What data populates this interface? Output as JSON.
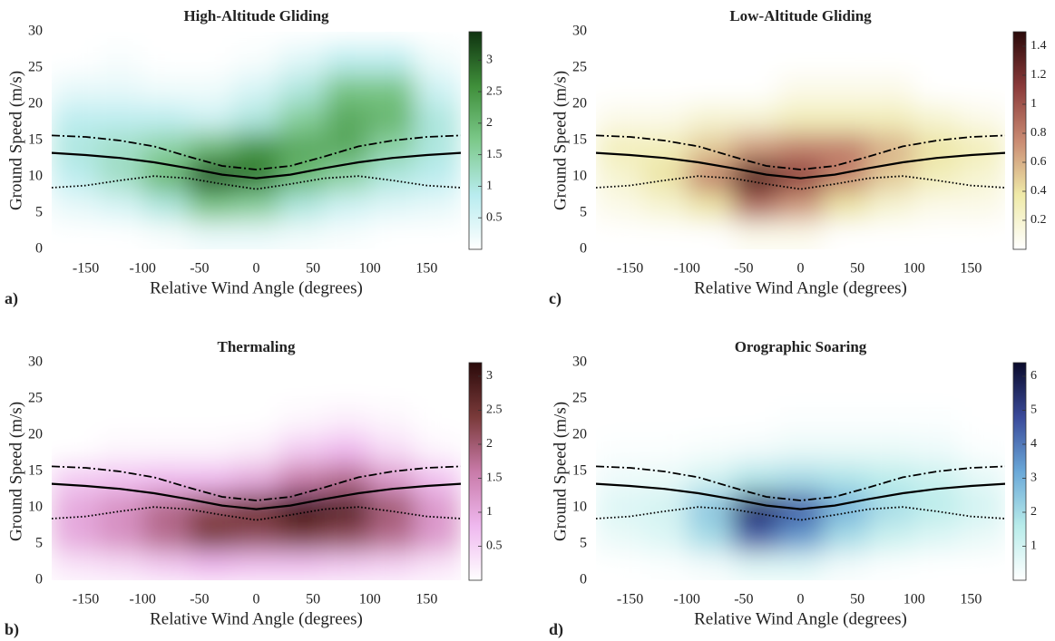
{
  "chart_data": [
    {
      "type": "heatmap",
      "title": "High-Altitude Gliding",
      "xlabel": "Relative Wind Angle (degrees)",
      "ylabel": "Ground Speed (m/s)",
      "panel_label": "a)",
      "xlim": [
        -180,
        180
      ],
      "xticks": [
        -150,
        -100,
        -50,
        0,
        50,
        100,
        150
      ],
      "ylim": [
        0,
        30
      ],
      "yticks": [
        0,
        5,
        10,
        15,
        20,
        25,
        30
      ],
      "colormap": [
        "#ffffff",
        "#b8ecef",
        "#7cc98a",
        "#3f8f3a",
        "#0f3310"
      ],
      "clim": [
        0,
        3.45
      ],
      "cticks": [
        0.5,
        1,
        1.5,
        2,
        2.5,
        3
      ],
      "x": [
        -160,
        -120,
        -80,
        -40,
        0,
        40,
        80,
        120,
        160
      ],
      "y": [
        2,
        6,
        10,
        14,
        18,
        22,
        26
      ],
      "z": [
        [
          0,
          0,
          0.1,
          0.3,
          0.3,
          0.2,
          0.1,
          0,
          0
        ],
        [
          0.3,
          0.5,
          1.0,
          1.8,
          1.6,
          1.0,
          0.6,
          0.4,
          0.3
        ],
        [
          0.8,
          1.2,
          2.0,
          3.2,
          2.8,
          2.0,
          1.5,
          1.0,
          0.8
        ],
        [
          1.0,
          1.2,
          1.5,
          2.0,
          2.5,
          2.2,
          2.2,
          1.5,
          1.0
        ],
        [
          0.8,
          0.8,
          0.8,
          0.6,
          1.0,
          1.6,
          2.2,
          2.0,
          1.0
        ],
        [
          0.3,
          0.3,
          0.2,
          0.2,
          0.5,
          1.0,
          1.8,
          1.8,
          0.6
        ],
        [
          0,
          0.1,
          0,
          0,
          0.1,
          0.4,
          0.8,
          0.8,
          0.2
        ]
      ],
      "series": [
        {
          "style": "dashed",
          "color": "#000000",
          "x": [
            -180,
            -150,
            -120,
            -90,
            -60,
            -30,
            0,
            30,
            60,
            90,
            120,
            150,
            180
          ],
          "values": [
            15.7,
            15.5,
            15.0,
            14.2,
            12.8,
            11.5,
            11.0,
            11.5,
            12.8,
            14.2,
            15.0,
            15.5,
            15.7
          ]
        },
        {
          "style": "solid",
          "color": "#000000",
          "x": [
            -180,
            -150,
            -120,
            -90,
            -60,
            -30,
            0,
            30,
            60,
            90,
            120,
            150,
            180
          ],
          "values": [
            13.3,
            13.0,
            12.6,
            12.0,
            11.2,
            10.3,
            9.8,
            10.3,
            11.2,
            12.0,
            12.6,
            13.0,
            13.3
          ]
        },
        {
          "style": "dotted",
          "color": "#000000",
          "x": [
            -180,
            -150,
            -120,
            -90,
            -60,
            -30,
            0,
            30,
            60,
            90,
            120,
            150,
            180
          ],
          "values": [
            8.5,
            8.8,
            9.5,
            10.1,
            9.8,
            9.0,
            8.3,
            9.0,
            9.8,
            10.1,
            9.5,
            8.8,
            8.5
          ]
        }
      ]
    },
    {
      "type": "heatmap",
      "title": "Low-Altitude Gliding",
      "xlabel": "Relative Wind Angle (degrees)",
      "ylabel": "Ground Speed (m/s)",
      "panel_label": "c)",
      "xlim": [
        -180,
        180
      ],
      "xticks": [
        -150,
        -100,
        -50,
        0,
        50,
        100,
        150
      ],
      "ylim": [
        0,
        30
      ],
      "yticks": [
        0,
        5,
        10,
        15,
        20,
        25,
        30
      ],
      "colormap": [
        "#ffffff",
        "#efeaa8",
        "#c98a72",
        "#8a3a3a",
        "#2a0a0a"
      ],
      "clim": [
        0,
        1.5
      ],
      "cticks": [
        0.2,
        0.4,
        0.6,
        0.8,
        1,
        1.2,
        1.4
      ],
      "x": [
        -160,
        -120,
        -80,
        -40,
        0,
        40,
        80,
        120,
        160
      ],
      "y": [
        2,
        6,
        10,
        14,
        18,
        22,
        26
      ],
      "z": [
        [
          0,
          0,
          0,
          0.1,
          0.1,
          0,
          0,
          0,
          0
        ],
        [
          0.1,
          0.2,
          0.4,
          0.9,
          0.7,
          0.4,
          0.2,
          0.1,
          0.1
        ],
        [
          0.2,
          0.4,
          0.8,
          1.4,
          1.1,
          0.8,
          0.5,
          0.3,
          0.2
        ],
        [
          0.3,
          0.3,
          0.5,
          0.7,
          0.8,
          0.8,
          0.6,
          0.4,
          0.3
        ],
        [
          0.1,
          0.1,
          0.2,
          0.2,
          0.3,
          0.3,
          0.3,
          0.2,
          0.1
        ],
        [
          0,
          0,
          0,
          0,
          0.1,
          0.1,
          0.1,
          0,
          0
        ],
        [
          0,
          0,
          0,
          0,
          0,
          0,
          0,
          0,
          0
        ]
      ],
      "series": [
        {
          "style": "dashed",
          "color": "#000000",
          "x": [
            -180,
            -150,
            -120,
            -90,
            -60,
            -30,
            0,
            30,
            60,
            90,
            120,
            150,
            180
          ],
          "values": [
            15.7,
            15.5,
            15.0,
            14.2,
            12.8,
            11.5,
            11.0,
            11.5,
            12.8,
            14.2,
            15.0,
            15.5,
            15.7
          ]
        },
        {
          "style": "solid",
          "color": "#000000",
          "x": [
            -180,
            -150,
            -120,
            -90,
            -60,
            -30,
            0,
            30,
            60,
            90,
            120,
            150,
            180
          ],
          "values": [
            13.3,
            13.0,
            12.6,
            12.0,
            11.2,
            10.3,
            9.8,
            10.3,
            11.2,
            12.0,
            12.6,
            13.0,
            13.3
          ]
        },
        {
          "style": "dotted",
          "color": "#000000",
          "x": [
            -180,
            -150,
            -120,
            -90,
            -60,
            -30,
            0,
            30,
            60,
            90,
            120,
            150,
            180
          ],
          "values": [
            8.5,
            8.8,
            9.5,
            10.1,
            9.8,
            9.0,
            8.3,
            9.0,
            9.8,
            10.1,
            9.5,
            8.8,
            8.5
          ]
        }
      ]
    },
    {
      "type": "heatmap",
      "title": "Thermaling",
      "xlabel": "Relative Wind Angle (degrees)",
      "ylabel": "Ground Speed (m/s)",
      "panel_label": "b)",
      "xlim": [
        -180,
        180
      ],
      "xticks": [
        -150,
        -100,
        -50,
        0,
        50,
        100,
        150
      ],
      "ylim": [
        0,
        30
      ],
      "yticks": [
        0,
        5,
        10,
        15,
        20,
        25,
        30
      ],
      "colormap": [
        "#ffffff",
        "#efb8ef",
        "#c87aa8",
        "#7a3a3a",
        "#2a0a0a"
      ],
      "clim": [
        0,
        3.2
      ],
      "cticks": [
        0.5,
        1,
        1.5,
        2,
        2.5,
        3
      ],
      "x": [
        -160,
        -120,
        -80,
        -40,
        0,
        40,
        80,
        120,
        160
      ],
      "y": [
        2,
        6,
        10,
        14,
        18,
        22,
        26
      ],
      "z": [
        [
          0.3,
          0.4,
          0.6,
          0.8,
          0.7,
          0.7,
          0.6,
          0.5,
          0.3
        ],
        [
          1.0,
          1.3,
          1.8,
          2.4,
          2.2,
          2.4,
          2.2,
          1.8,
          1.2
        ],
        [
          1.0,
          1.3,
          1.8,
          2.2,
          2.5,
          3.1,
          2.8,
          2.0,
          1.2
        ],
        [
          0.6,
          0.7,
          0.8,
          0.8,
          1.0,
          1.6,
          1.8,
          1.2,
          0.7
        ],
        [
          0,
          0.1,
          0.1,
          0.1,
          0.2,
          0.6,
          0.8,
          0.4,
          0.1
        ],
        [
          0,
          0,
          0,
          0,
          0,
          0.1,
          0.2,
          0.1,
          0
        ],
        [
          0,
          0,
          0,
          0,
          0,
          0,
          0,
          0,
          0
        ]
      ],
      "series": [
        {
          "style": "dashed",
          "color": "#000000",
          "x": [
            -180,
            -150,
            -120,
            -90,
            -60,
            -30,
            0,
            30,
            60,
            90,
            120,
            150,
            180
          ],
          "values": [
            15.7,
            15.5,
            15.0,
            14.2,
            12.8,
            11.5,
            11.0,
            11.5,
            12.8,
            14.2,
            15.0,
            15.5,
            15.7
          ]
        },
        {
          "style": "solid",
          "color": "#000000",
          "x": [
            -180,
            -150,
            -120,
            -90,
            -60,
            -30,
            0,
            30,
            60,
            90,
            120,
            150,
            180
          ],
          "values": [
            13.3,
            13.0,
            12.6,
            12.0,
            11.2,
            10.3,
            9.8,
            10.3,
            11.2,
            12.0,
            12.6,
            13.0,
            13.3
          ]
        },
        {
          "style": "dotted",
          "color": "#000000",
          "x": [
            -180,
            -150,
            -120,
            -90,
            -60,
            -30,
            0,
            30,
            60,
            90,
            120,
            150,
            180
          ],
          "values": [
            8.5,
            8.8,
            9.5,
            10.1,
            9.8,
            9.0,
            8.3,
            9.0,
            9.8,
            10.1,
            9.5,
            8.8,
            8.5
          ]
        }
      ]
    },
    {
      "type": "heatmap",
      "title": "Orographic Soaring",
      "xlabel": "Relative Wind Angle (degrees)",
      "ylabel": "Ground Speed (m/s)",
      "panel_label": "d)",
      "xlim": [
        -180,
        180
      ],
      "xticks": [
        -150,
        -100,
        -50,
        0,
        50,
        100,
        150
      ],
      "ylim": [
        0,
        30
      ],
      "yticks": [
        0,
        5,
        10,
        15,
        20,
        25,
        30
      ],
      "colormap": [
        "#ffffff",
        "#b8ecea",
        "#6aa8d8",
        "#3a4a9a",
        "#0a0a2a"
      ],
      "clim": [
        0,
        6.4
      ],
      "cticks": [
        1,
        2,
        3,
        4,
        5,
        6
      ],
      "x": [
        -160,
        -120,
        -80,
        -40,
        0,
        40,
        80,
        120,
        160
      ],
      "y": [
        2,
        6,
        10,
        14,
        18,
        22,
        26
      ],
      "z": [
        [
          0,
          0.1,
          0.3,
          0.8,
          0.8,
          0.3,
          0.1,
          0,
          0
        ],
        [
          0.5,
          0.8,
          2.0,
          4.5,
          3.5,
          2.0,
          1.2,
          0.8,
          0.5
        ],
        [
          0.8,
          1.0,
          2.5,
          5.5,
          4.5,
          3.0,
          2.0,
          1.5,
          1.0
        ],
        [
          0.4,
          0.5,
          1.0,
          1.8,
          2.0,
          1.8,
          1.5,
          1.2,
          0.6
        ],
        [
          0.1,
          0.1,
          0.2,
          0.3,
          0.5,
          0.5,
          0.5,
          0.4,
          0.1
        ],
        [
          0,
          0,
          0,
          0,
          0.1,
          0.1,
          0.1,
          0.1,
          0
        ],
        [
          0,
          0,
          0,
          0,
          0,
          0,
          0,
          0,
          0
        ]
      ],
      "series": [
        {
          "style": "dashed",
          "color": "#000000",
          "x": [
            -180,
            -150,
            -120,
            -90,
            -60,
            -30,
            0,
            30,
            60,
            90,
            120,
            150,
            180
          ],
          "values": [
            15.7,
            15.5,
            15.0,
            14.2,
            12.8,
            11.5,
            11.0,
            11.5,
            12.8,
            14.2,
            15.0,
            15.5,
            15.7
          ]
        },
        {
          "style": "solid",
          "color": "#000000",
          "x": [
            -180,
            -150,
            -120,
            -90,
            -60,
            -30,
            0,
            30,
            60,
            90,
            120,
            150,
            180
          ],
          "values": [
            13.3,
            13.0,
            12.6,
            12.0,
            11.2,
            10.3,
            9.8,
            10.3,
            11.2,
            12.0,
            12.6,
            13.0,
            13.3
          ]
        },
        {
          "style": "dotted",
          "color": "#000000",
          "x": [
            -180,
            -150,
            -120,
            -90,
            -60,
            -30,
            0,
            30,
            60,
            90,
            120,
            150,
            180
          ],
          "values": [
            8.5,
            8.8,
            9.5,
            10.1,
            9.8,
            9.0,
            8.3,
            9.0,
            9.8,
            10.1,
            9.5,
            8.8,
            8.5
          ]
        }
      ]
    }
  ]
}
